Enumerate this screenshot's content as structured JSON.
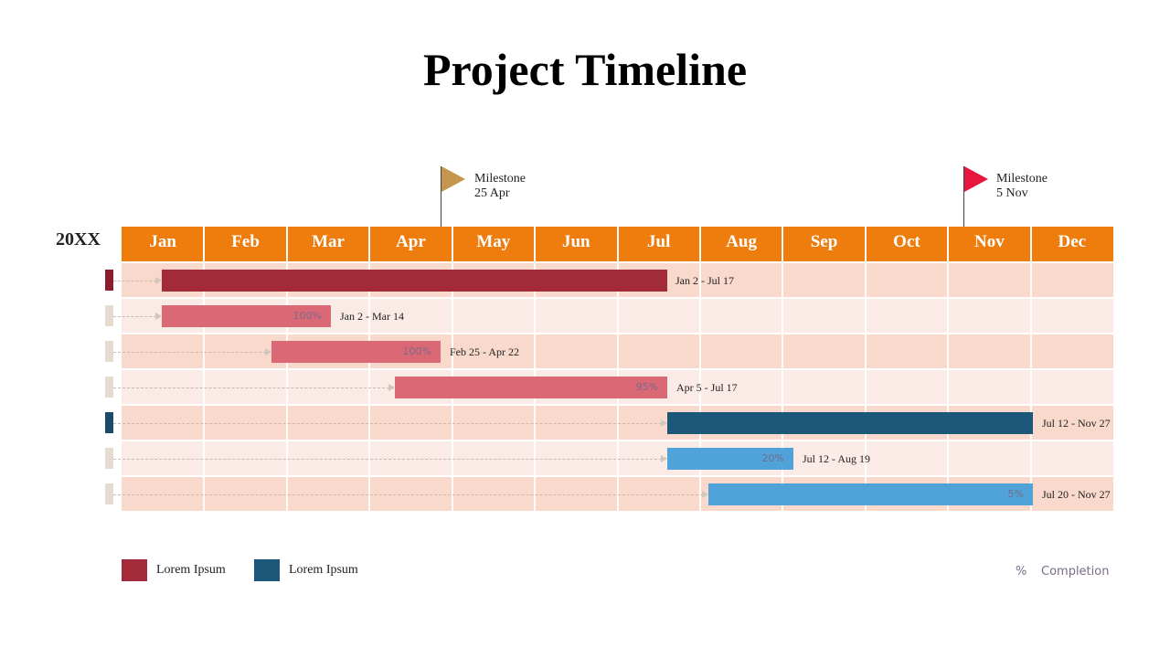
{
  "title": "Project Timeline",
  "year": "20XX",
  "months": [
    "Jan",
    "Feb",
    "Mar",
    "Apr",
    "May",
    "Jun",
    "Jul",
    "Aug",
    "Sep",
    "Oct",
    "Nov",
    "Dec"
  ],
  "milestones": [
    {
      "label": "Milestone",
      "date": "25 Apr",
      "color": "#c4964e"
    },
    {
      "label": "Milestone",
      "date": "5 Nov",
      "color": "#e8163f"
    }
  ],
  "tasks": [
    {
      "range": "Jan 2 - Jul 17",
      "pct": "",
      "color": "#a32a38",
      "marker": "#8b1e2c"
    },
    {
      "range": "Jan 2 - Mar 14",
      "pct": "100%",
      "color": "#db6975",
      "marker": "#e3dccf"
    },
    {
      "range": "Feb 25 - Apr 22",
      "pct": "100%",
      "color": "#db6975",
      "marker": "#e3dccf"
    },
    {
      "range": "Apr 5 - Jul 17",
      "pct": "95%",
      "color": "#db6975",
      "marker": "#e3dccf"
    },
    {
      "range": "Jul 12 - Nov 27",
      "pct": "",
      "color": "#1c577a",
      "marker": "#1c4a6a"
    },
    {
      "range": "Jul 12 - Aug 19",
      "pct": "20%",
      "color": "#4fa3d8",
      "marker": "#e3dccf"
    },
    {
      "range": "Jul 20 - Nov 27",
      "pct": "5%",
      "color": "#4fa3d8",
      "marker": "#e3dccf"
    }
  ],
  "legend": [
    {
      "label": "Lorem Ipsum",
      "color": "#a32a38"
    },
    {
      "label": "Lorem Ipsum",
      "color": "#1c577a"
    }
  ],
  "completion": {
    "symbol": "%",
    "label": "Completion"
  }
}
